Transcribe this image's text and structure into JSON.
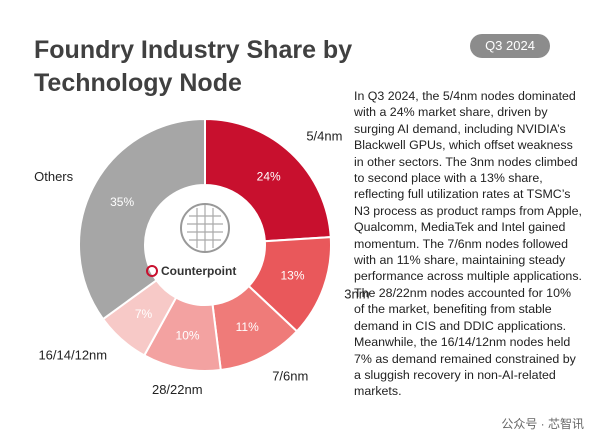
{
  "chart_data": {
    "type": "pie",
    "title": "Foundry Industry Share by Technology Node",
    "badge": "Q3 2024",
    "categories": [
      "5/4nm",
      "3nm",
      "7/6nm",
      "28/22nm",
      "16/14/12nm",
      "Others"
    ],
    "values": [
      24,
      13,
      11,
      10,
      7,
      35
    ],
    "value_labels": [
      "24%",
      "13%",
      "11%",
      "10%",
      "7%",
      "35%"
    ],
    "colors": [
      "#c8102e",
      "#e9585b",
      "#ef7b79",
      "#f3a2a1",
      "#f7c9c7",
      "#a6a6a6"
    ],
    "logo": "Counterpoint",
    "description": "In Q3 2024, the 5/4nm nodes dominated with a 24% market share, driven by surging AI demand, including NVIDIA’s Blackwell GPUs, which offset weakness in other sectors. The 3nm nodes climbed to second place with a 13% share, reflecting full utilization rates at TSMC’s N3 process as product ramps from Apple, Qualcomm, MediaTek and Intel gained momentum. The 7/6nm nodes followed with an 11% share, maintaining steady performance across multiple applications. The 28/22nm nodes accounted for 10% of the market, benefiting from stable demand in CIS and DDIC applications. Meanwhile, the 16/14/12nm nodes held 7% as demand remained constrained by a sluggish recovery in non-AI-related markets.",
    "watermark": "公众号 · 芯智讯"
  }
}
